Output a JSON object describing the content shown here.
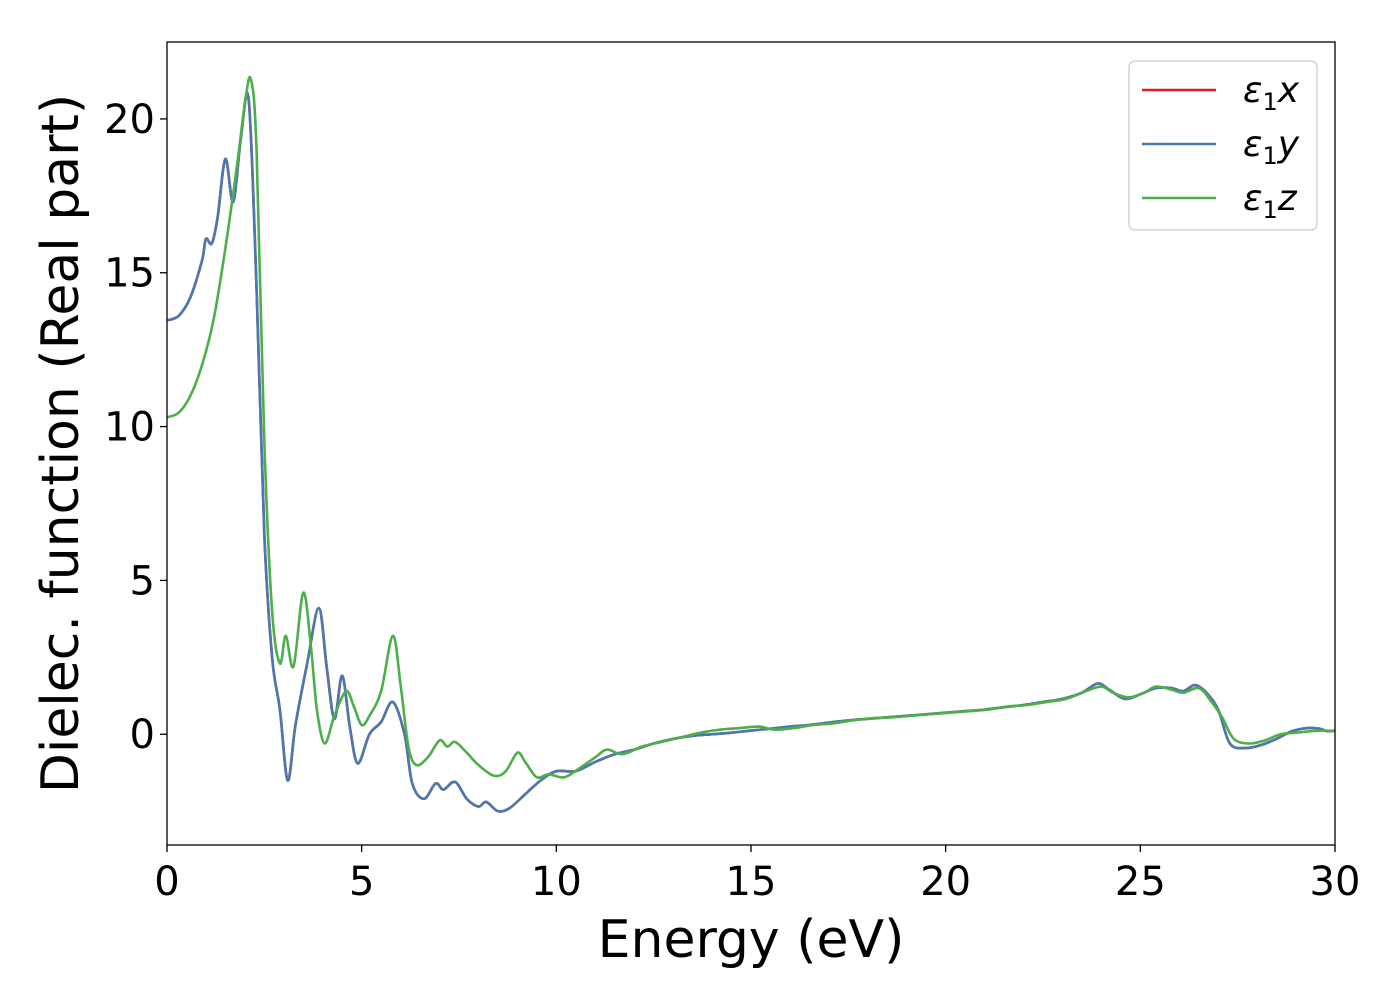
{
  "chart_data": {
    "type": "line",
    "xlabel": "Energy (eV)",
    "ylabel": "Dielec. function (Real part)",
    "xlim": [
      0,
      30
    ],
    "ylim": [
      -3.6,
      22.5
    ],
    "xticks": [
      0,
      5,
      10,
      15,
      20,
      25,
      30
    ],
    "yticks": [
      0,
      5,
      10,
      15,
      20
    ],
    "grid": false,
    "legend_position": "top-right",
    "series": [
      {
        "name": "ε1x",
        "legend_symbol": "ε",
        "legend_sub": "1",
        "legend_suffix": "x",
        "color": "#e41a1c",
        "points": [
          [
            0,
            13.45
          ],
          [
            0.3,
            13.6
          ],
          [
            0.6,
            14.2
          ],
          [
            0.9,
            15.4
          ],
          [
            1.0,
            16.1
          ],
          [
            1.15,
            15.95
          ],
          [
            1.3,
            16.8
          ],
          [
            1.5,
            18.7
          ],
          [
            1.7,
            17.3
          ],
          [
            1.9,
            19.4
          ],
          [
            2.1,
            20.6
          ],
          [
            2.3,
            14.5
          ],
          [
            2.5,
            6.5
          ],
          [
            2.7,
            2.5
          ],
          [
            2.9,
            0.8
          ],
          [
            3.1,
            -1.5
          ],
          [
            3.3,
            0.3
          ],
          [
            3.6,
            2.3
          ],
          [
            3.9,
            4.1
          ],
          [
            4.1,
            2.2
          ],
          [
            4.3,
            0.5
          ],
          [
            4.5,
            1.9
          ],
          [
            4.7,
            0.2
          ],
          [
            4.9,
            -0.95
          ],
          [
            5.2,
            0.0
          ],
          [
            5.5,
            0.4
          ],
          [
            5.8,
            1.05
          ],
          [
            6.1,
            0.0
          ],
          [
            6.3,
            -1.6
          ],
          [
            6.6,
            -2.1
          ],
          [
            6.9,
            -1.6
          ],
          [
            7.1,
            -1.8
          ],
          [
            7.4,
            -1.55
          ],
          [
            7.7,
            -2.1
          ],
          [
            8.0,
            -2.35
          ],
          [
            8.2,
            -2.2
          ],
          [
            8.5,
            -2.5
          ],
          [
            8.8,
            -2.4
          ],
          [
            9.2,
            -1.95
          ],
          [
            9.6,
            -1.5
          ],
          [
            10.0,
            -1.2
          ],
          [
            10.5,
            -1.2
          ],
          [
            11.0,
            -0.9
          ],
          [
            11.5,
            -0.65
          ],
          [
            12.0,
            -0.5
          ],
          [
            12.5,
            -0.3
          ],
          [
            13.0,
            -0.15
          ],
          [
            13.5,
            -0.05
          ],
          [
            14.0,
            0.0
          ],
          [
            14.5,
            0.05
          ],
          [
            15.0,
            0.12
          ],
          [
            15.5,
            0.18
          ],
          [
            16.0,
            0.25
          ],
          [
            16.5,
            0.3
          ],
          [
            17.0,
            0.38
          ],
          [
            17.5,
            0.45
          ],
          [
            18.0,
            0.5
          ],
          [
            18.5,
            0.55
          ],
          [
            19.0,
            0.6
          ],
          [
            19.5,
            0.65
          ],
          [
            20.0,
            0.7
          ],
          [
            20.5,
            0.75
          ],
          [
            21.0,
            0.8
          ],
          [
            21.5,
            0.88
          ],
          [
            22.0,
            0.95
          ],
          [
            22.5,
            1.05
          ],
          [
            23.0,
            1.15
          ],
          [
            23.5,
            1.35
          ],
          [
            23.9,
            1.65
          ],
          [
            24.2,
            1.45
          ],
          [
            24.6,
            1.15
          ],
          [
            25.0,
            1.3
          ],
          [
            25.4,
            1.5
          ],
          [
            25.8,
            1.5
          ],
          [
            26.1,
            1.4
          ],
          [
            26.4,
            1.6
          ],
          [
            26.7,
            1.35
          ],
          [
            27.0,
            0.8
          ],
          [
            27.3,
            -0.3
          ],
          [
            27.7,
            -0.45
          ],
          [
            28.1,
            -0.35
          ],
          [
            28.5,
            -0.15
          ],
          [
            28.9,
            0.1
          ],
          [
            29.3,
            0.2
          ],
          [
            29.6,
            0.18
          ],
          [
            29.8,
            0.1
          ],
          [
            30.0,
            0.12
          ]
        ]
      },
      {
        "name": "ε1y",
        "legend_symbol": "ε",
        "legend_sub": "1",
        "legend_suffix": "y",
        "color": "#4a78b0",
        "points": [
          [
            0,
            13.45
          ],
          [
            0.3,
            13.6
          ],
          [
            0.6,
            14.2
          ],
          [
            0.9,
            15.4
          ],
          [
            1.0,
            16.1
          ],
          [
            1.15,
            15.95
          ],
          [
            1.3,
            16.8
          ],
          [
            1.5,
            18.7
          ],
          [
            1.7,
            17.3
          ],
          [
            1.9,
            19.4
          ],
          [
            2.1,
            20.6
          ],
          [
            2.3,
            14.5
          ],
          [
            2.5,
            6.5
          ],
          [
            2.7,
            2.5
          ],
          [
            2.9,
            0.8
          ],
          [
            3.1,
            -1.5
          ],
          [
            3.3,
            0.3
          ],
          [
            3.6,
            2.3
          ],
          [
            3.9,
            4.1
          ],
          [
            4.1,
            2.2
          ],
          [
            4.3,
            0.5
          ],
          [
            4.5,
            1.9
          ],
          [
            4.7,
            0.2
          ],
          [
            4.9,
            -0.95
          ],
          [
            5.2,
            0.0
          ],
          [
            5.5,
            0.4
          ],
          [
            5.8,
            1.05
          ],
          [
            6.1,
            0.0
          ],
          [
            6.3,
            -1.6
          ],
          [
            6.6,
            -2.1
          ],
          [
            6.9,
            -1.6
          ],
          [
            7.1,
            -1.8
          ],
          [
            7.4,
            -1.55
          ],
          [
            7.7,
            -2.1
          ],
          [
            8.0,
            -2.35
          ],
          [
            8.2,
            -2.2
          ],
          [
            8.5,
            -2.5
          ],
          [
            8.8,
            -2.4
          ],
          [
            9.2,
            -1.95
          ],
          [
            9.6,
            -1.5
          ],
          [
            10.0,
            -1.2
          ],
          [
            10.5,
            -1.2
          ],
          [
            11.0,
            -0.9
          ],
          [
            11.5,
            -0.65
          ],
          [
            12.0,
            -0.5
          ],
          [
            12.5,
            -0.3
          ],
          [
            13.0,
            -0.15
          ],
          [
            13.5,
            -0.05
          ],
          [
            14.0,
            0.0
          ],
          [
            14.5,
            0.05
          ],
          [
            15.0,
            0.12
          ],
          [
            15.5,
            0.18
          ],
          [
            16.0,
            0.25
          ],
          [
            16.5,
            0.3
          ],
          [
            17.0,
            0.38
          ],
          [
            17.5,
            0.45
          ],
          [
            18.0,
            0.5
          ],
          [
            18.5,
            0.55
          ],
          [
            19.0,
            0.6
          ],
          [
            19.5,
            0.65
          ],
          [
            20.0,
            0.7
          ],
          [
            20.5,
            0.75
          ],
          [
            21.0,
            0.8
          ],
          [
            21.5,
            0.88
          ],
          [
            22.0,
            0.95
          ],
          [
            22.5,
            1.05
          ],
          [
            23.0,
            1.15
          ],
          [
            23.5,
            1.35
          ],
          [
            23.9,
            1.65
          ],
          [
            24.2,
            1.45
          ],
          [
            24.6,
            1.15
          ],
          [
            25.0,
            1.3
          ],
          [
            25.4,
            1.5
          ],
          [
            25.8,
            1.5
          ],
          [
            26.1,
            1.4
          ],
          [
            26.4,
            1.6
          ],
          [
            26.7,
            1.35
          ],
          [
            27.0,
            0.8
          ],
          [
            27.3,
            -0.3
          ],
          [
            27.7,
            -0.45
          ],
          [
            28.1,
            -0.35
          ],
          [
            28.5,
            -0.15
          ],
          [
            28.9,
            0.1
          ],
          [
            29.3,
            0.2
          ],
          [
            29.6,
            0.18
          ],
          [
            29.8,
            0.1
          ],
          [
            30.0,
            0.12
          ]
        ]
      },
      {
        "name": "ε1z",
        "legend_symbol": "ε",
        "legend_sub": "1",
        "legend_suffix": "z",
        "color": "#4daf4a",
        "points": [
          [
            0,
            10.3
          ],
          [
            0.3,
            10.45
          ],
          [
            0.6,
            11.0
          ],
          [
            0.9,
            12.0
          ],
          [
            1.2,
            13.5
          ],
          [
            1.5,
            15.8
          ],
          [
            1.8,
            18.5
          ],
          [
            2.0,
            20.5
          ],
          [
            2.15,
            21.3
          ],
          [
            2.3,
            19.0
          ],
          [
            2.5,
            9.5
          ],
          [
            2.7,
            4.0
          ],
          [
            2.9,
            2.3
          ],
          [
            3.05,
            3.2
          ],
          [
            3.25,
            2.2
          ],
          [
            3.5,
            4.6
          ],
          [
            3.7,
            2.8
          ],
          [
            3.85,
            0.8
          ],
          [
            4.05,
            -0.3
          ],
          [
            4.3,
            0.6
          ],
          [
            4.6,
            1.4
          ],
          [
            4.8,
            0.9
          ],
          [
            5.0,
            0.3
          ],
          [
            5.2,
            0.6
          ],
          [
            5.5,
            1.4
          ],
          [
            5.8,
            3.2
          ],
          [
            6.0,
            1.6
          ],
          [
            6.2,
            -0.4
          ],
          [
            6.4,
            -1.0
          ],
          [
            6.7,
            -0.75
          ],
          [
            7.0,
            -0.2
          ],
          [
            7.2,
            -0.4
          ],
          [
            7.4,
            -0.25
          ],
          [
            7.7,
            -0.6
          ],
          [
            8.0,
            -1.0
          ],
          [
            8.4,
            -1.35
          ],
          [
            8.7,
            -1.2
          ],
          [
            9.0,
            -0.6
          ],
          [
            9.2,
            -0.9
          ],
          [
            9.5,
            -1.4
          ],
          [
            9.8,
            -1.3
          ],
          [
            10.2,
            -1.4
          ],
          [
            10.6,
            -1.1
          ],
          [
            11.0,
            -0.75
          ],
          [
            11.3,
            -0.5
          ],
          [
            11.7,
            -0.65
          ],
          [
            12.2,
            -0.4
          ],
          [
            12.7,
            -0.25
          ],
          [
            13.2,
            -0.1
          ],
          [
            13.7,
            0.05
          ],
          [
            14.2,
            0.15
          ],
          [
            14.7,
            0.2
          ],
          [
            15.2,
            0.25
          ],
          [
            15.6,
            0.15
          ],
          [
            16.1,
            0.2
          ],
          [
            16.6,
            0.3
          ],
          [
            17.1,
            0.35
          ],
          [
            17.6,
            0.45
          ],
          [
            18.1,
            0.52
          ],
          [
            18.6,
            0.55
          ],
          [
            19.1,
            0.6
          ],
          [
            19.6,
            0.65
          ],
          [
            20.1,
            0.7
          ],
          [
            20.6,
            0.75
          ],
          [
            21.1,
            0.8
          ],
          [
            21.6,
            0.9
          ],
          [
            22.1,
            0.95
          ],
          [
            22.6,
            1.05
          ],
          [
            23.1,
            1.15
          ],
          [
            23.6,
            1.4
          ],
          [
            24.0,
            1.55
          ],
          [
            24.3,
            1.35
          ],
          [
            24.7,
            1.2
          ],
          [
            25.1,
            1.35
          ],
          [
            25.4,
            1.55
          ],
          [
            25.8,
            1.45
          ],
          [
            26.1,
            1.35
          ],
          [
            26.5,
            1.5
          ],
          [
            26.8,
            1.1
          ],
          [
            27.1,
            0.55
          ],
          [
            27.4,
            -0.15
          ],
          [
            27.8,
            -0.3
          ],
          [
            28.2,
            -0.2
          ],
          [
            28.6,
            0.0
          ],
          [
            29.0,
            0.05
          ],
          [
            29.4,
            0.1
          ],
          [
            29.7,
            0.12
          ],
          [
            30.0,
            0.1
          ]
        ]
      }
    ]
  }
}
